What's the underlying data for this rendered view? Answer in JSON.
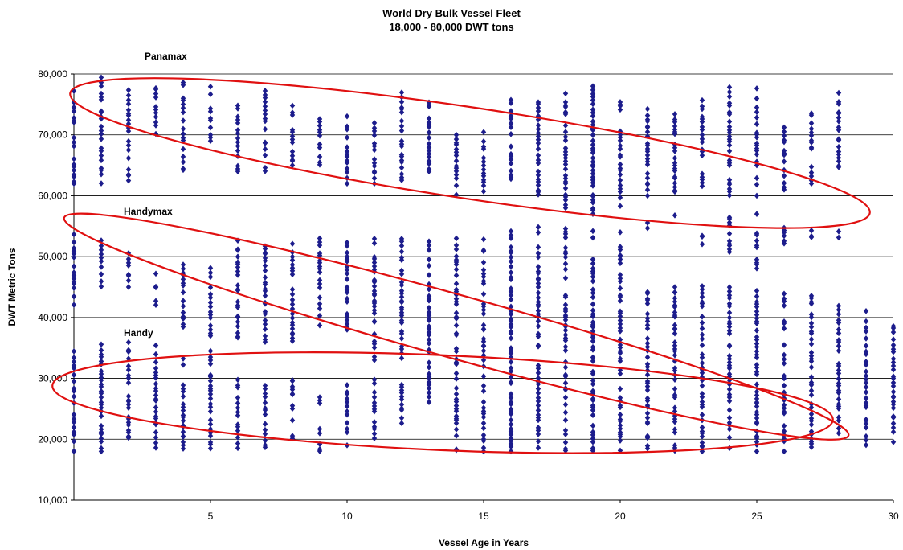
{
  "chart_data": {
    "type": "scatter",
    "title": "World Dry Bulk Vessel Fleet",
    "subtitle": "18,000 - 80,000 DWT tons",
    "xlabel": "Vessel Age in Years",
    "ylabel": "DWT Metric Tons",
    "xlim": [
      0,
      30
    ],
    "ylim": [
      10000,
      80000
    ],
    "x_ticks": [
      5,
      10,
      15,
      20,
      25,
      30
    ],
    "y_ticks": [
      10000,
      20000,
      30000,
      40000,
      50000,
      60000,
      70000,
      80000
    ],
    "x_tick_labels": [
      "5",
      "10",
      "15",
      "20",
      "25",
      "30"
    ],
    "y_tick_labels": [
      "10,000",
      "20,000",
      "30,000",
      "40,000",
      "50,000",
      "60,000",
      "70,000",
      "80,000"
    ],
    "grid": "horizontal",
    "marker_color": "#1c1c8c",
    "annotation_color": "#e01010",
    "annotations": [
      {
        "label": "Panamax",
        "center": [
          14.5,
          67000
        ],
        "semi_x": 14.8,
        "semi_y": 7500,
        "angle_deg": 8.5
      },
      {
        "label": "Handymax",
        "center": [
          14.0,
          38500
        ],
        "semi_x": 14.9,
        "semi_y": 5200,
        "angle_deg": 15.5
      },
      {
        "label": "Handy",
        "center": [
          13.5,
          26000
        ],
        "semi_x": 14.3,
        "semi_y": 7800,
        "angle_deg": 2.5
      }
    ],
    "series": [
      {
        "ranges": [
          [
            0,
            18000,
            35000
          ],
          [
            0,
            42000,
            54000
          ],
          [
            0,
            62000,
            77500
          ],
          [
            1,
            18000,
            36000
          ],
          [
            1,
            45000,
            53000
          ],
          [
            1,
            62000,
            80000
          ],
          [
            2,
            20000,
            37000
          ],
          [
            2,
            45000,
            51000
          ],
          [
            2,
            62000,
            78000
          ],
          [
            3,
            18500,
            36000
          ],
          [
            3,
            42000,
            48000
          ],
          [
            3,
            69000,
            78000
          ],
          [
            4,
            18000,
            35000
          ],
          [
            4,
            38000,
            50000
          ],
          [
            4,
            64000,
            79000
          ],
          [
            5,
            18000,
            35000
          ],
          [
            5,
            37000,
            49000
          ],
          [
            5,
            69000,
            78000
          ],
          [
            6,
            18000,
            30000
          ],
          [
            6,
            36000,
            53000
          ],
          [
            6,
            64000,
            76000
          ],
          [
            7,
            18000,
            30000
          ],
          [
            7,
            36000,
            53000
          ],
          [
            7,
            64000,
            77500
          ],
          [
            8,
            20000,
            30000
          ],
          [
            8,
            36000,
            53000
          ],
          [
            8,
            65000,
            75000
          ],
          [
            9,
            18000,
            27000
          ],
          [
            9,
            38000,
            53000
          ],
          [
            9,
            65000,
            74000
          ],
          [
            10,
            19000,
            29000
          ],
          [
            10,
            38000,
            53000
          ],
          [
            10,
            62000,
            74000
          ],
          [
            11,
            20000,
            30000
          ],
          [
            11,
            33000,
            53000
          ],
          [
            11,
            62000,
            72000
          ],
          [
            12,
            22000,
            30000
          ],
          [
            12,
            33000,
            53000
          ],
          [
            12,
            62000,
            77000
          ],
          [
            13,
            26000,
            36000
          ],
          [
            13,
            36000,
            53000
          ],
          [
            13,
            64000,
            77000
          ],
          [
            14,
            18000,
            36000
          ],
          [
            14,
            37000,
            53000
          ],
          [
            14,
            60000,
            70000
          ],
          [
            15,
            18000,
            48000
          ],
          [
            15,
            49000,
            53000
          ],
          [
            15,
            60000,
            71000
          ],
          [
            16,
            18000,
            52000
          ],
          [
            16,
            53000,
            55000
          ],
          [
            16,
            62000,
            76000
          ],
          [
            17,
            18000,
            52000
          ],
          [
            17,
            53000,
            55000
          ],
          [
            17,
            60000,
            77000
          ],
          [
            18,
            18000,
            52000
          ],
          [
            18,
            53000,
            55000
          ],
          [
            18,
            58000,
            78000
          ],
          [
            19,
            18000,
            50000
          ],
          [
            19,
            53000,
            55000
          ],
          [
            19,
            57000,
            78000
          ],
          [
            20,
            18000,
            52000
          ],
          [
            20,
            54000,
            55000
          ],
          [
            20,
            58000,
            76000
          ],
          [
            21,
            18000,
            45000
          ],
          [
            21,
            54000,
            56000
          ],
          [
            21,
            60000,
            75000
          ],
          [
            22,
            18000,
            45000
          ],
          [
            22,
            55000,
            57000
          ],
          [
            22,
            60000,
            75000
          ],
          [
            23,
            18000,
            46000
          ],
          [
            23,
            52000,
            54000
          ],
          [
            23,
            61000,
            76000
          ],
          [
            24,
            18000,
            45000
          ],
          [
            24,
            50000,
            57000
          ],
          [
            24,
            60000,
            78000
          ],
          [
            25,
            18000,
            46000
          ],
          [
            25,
            48000,
            57000
          ],
          [
            25,
            60000,
            78000
          ],
          [
            26,
            18000,
            44000
          ],
          [
            26,
            50000,
            55000
          ],
          [
            26,
            61000,
            72000
          ],
          [
            27,
            18500,
            44000
          ],
          [
            27,
            53000,
            55000
          ],
          [
            27,
            62000,
            74000
          ],
          [
            28,
            21000,
            42000
          ],
          [
            28,
            53000,
            55000
          ],
          [
            28,
            64000,
            77000
          ],
          [
            29,
            19000,
            42000
          ],
          [
            30,
            19500,
            39000
          ]
        ]
      }
    ]
  }
}
